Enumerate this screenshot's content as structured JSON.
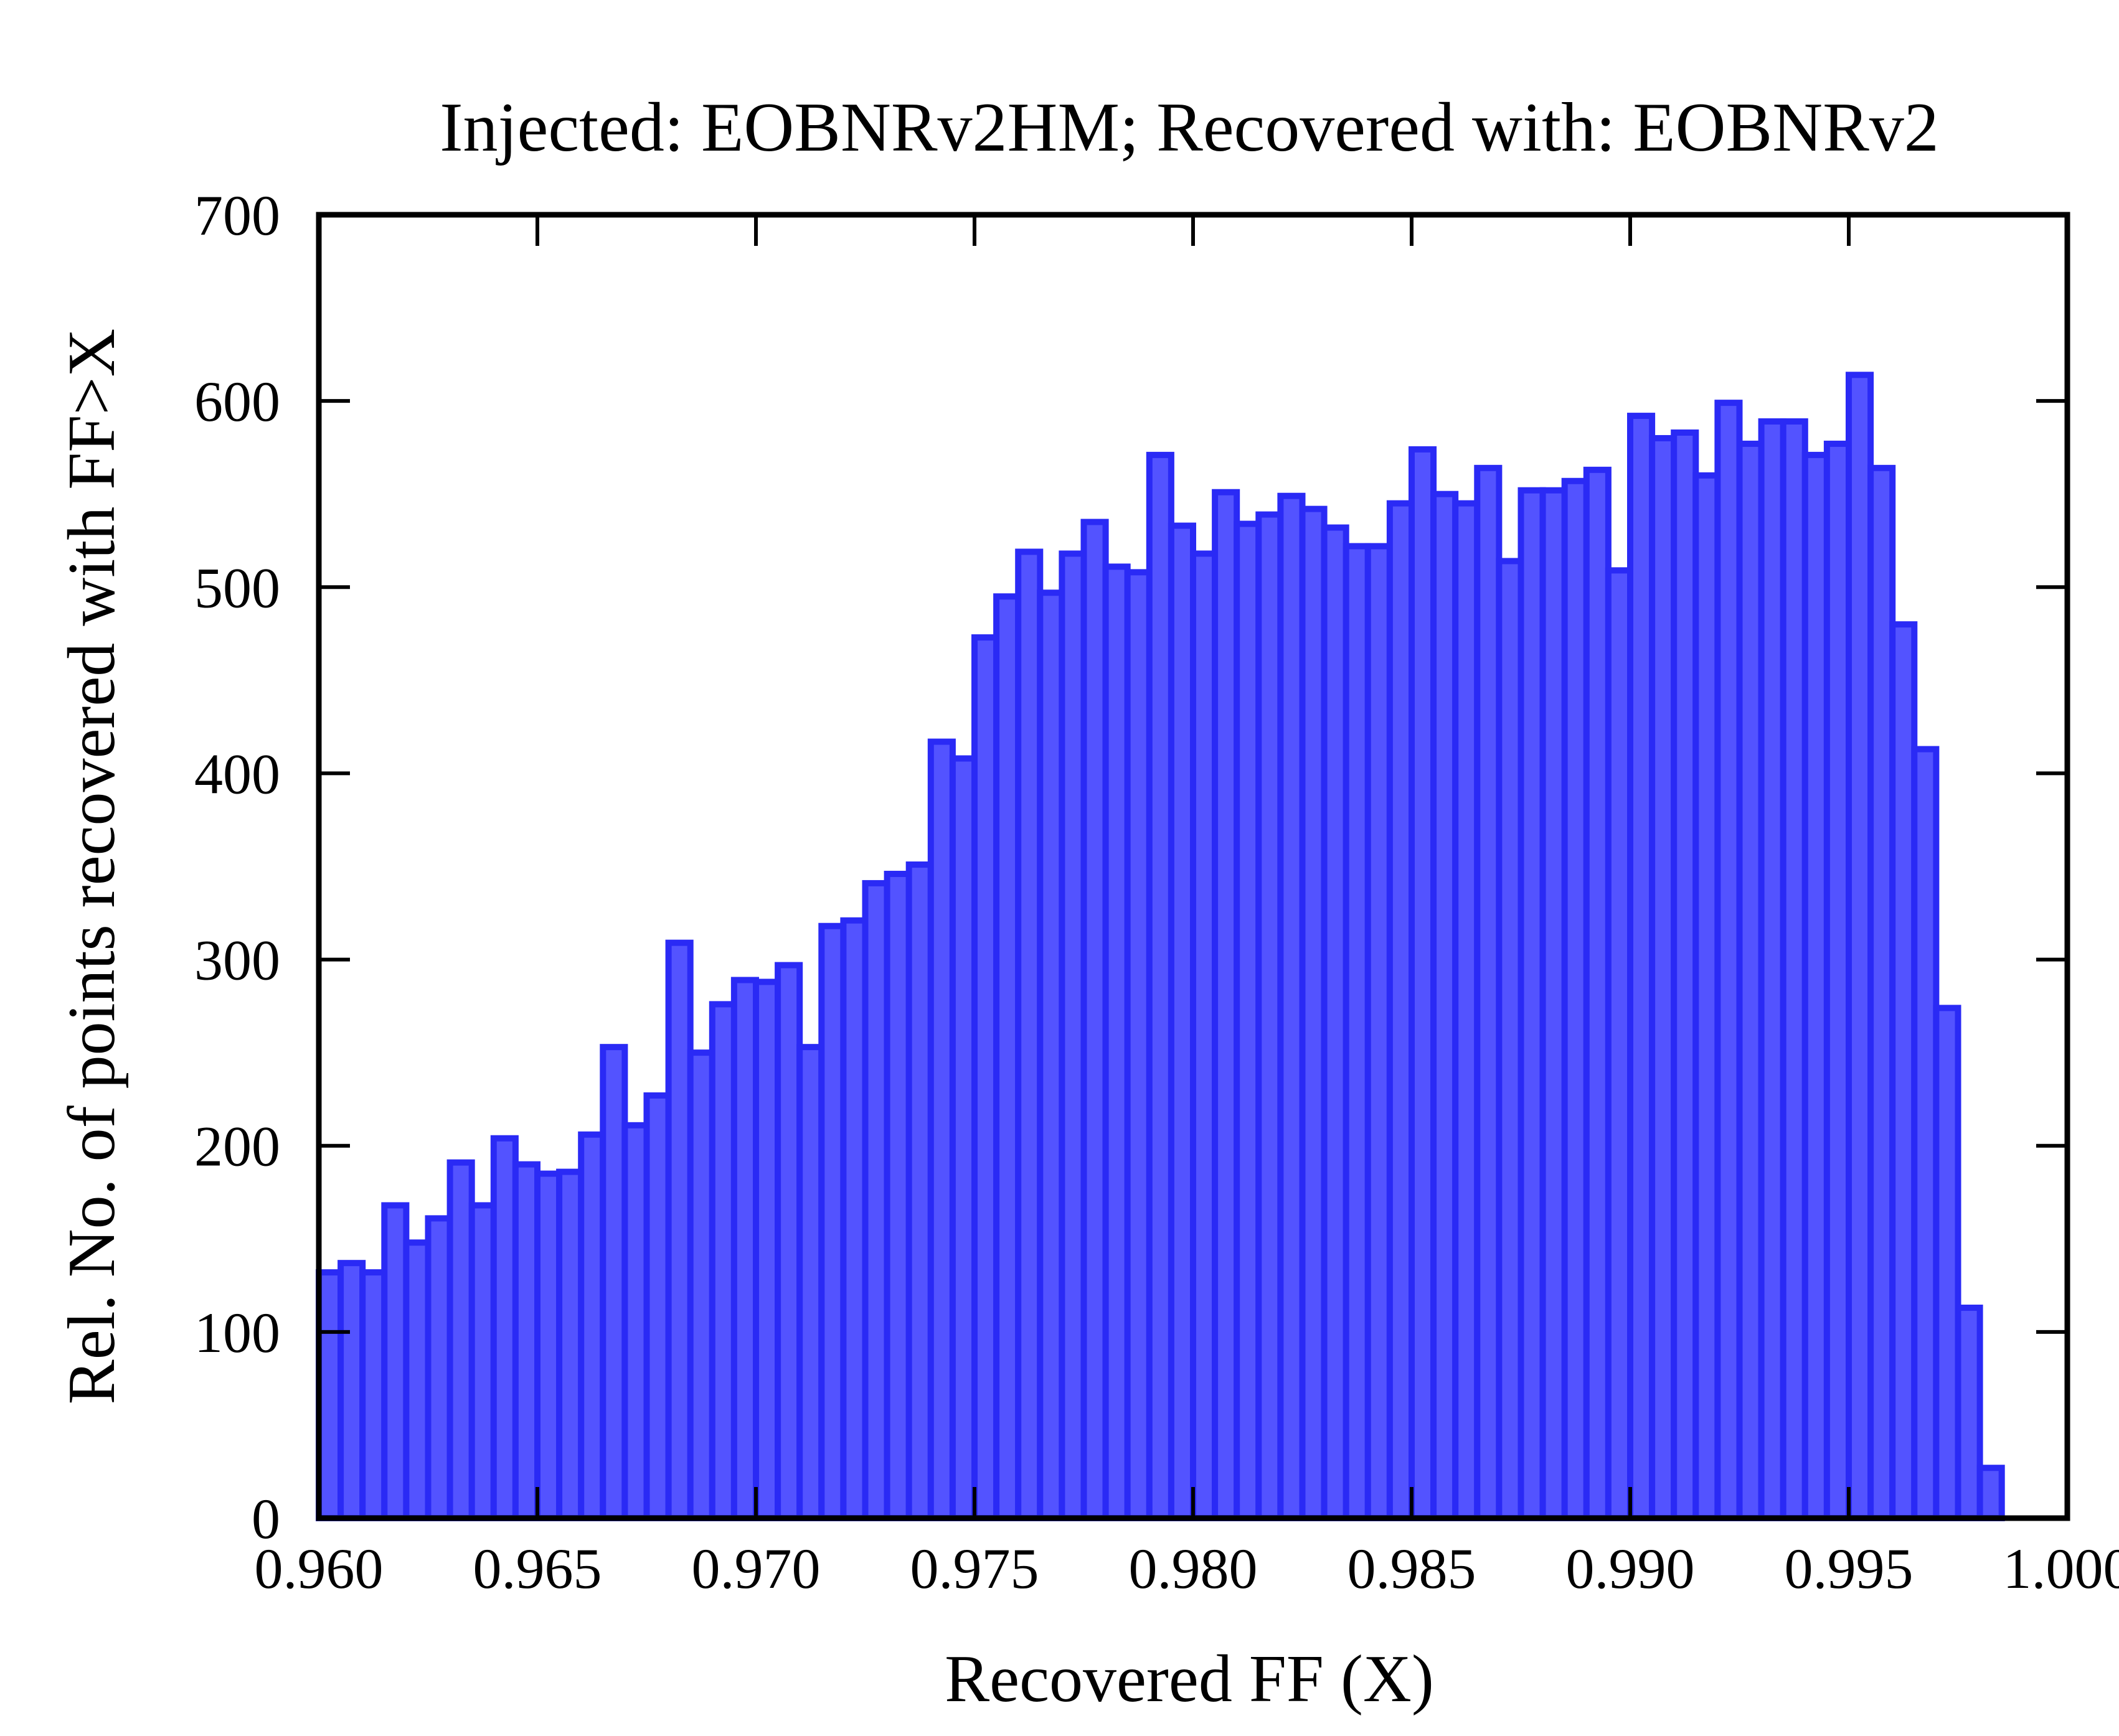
{
  "chart_data": {
    "type": "bar",
    "subtype": "histogram",
    "title": "Injected: EOBNRv2HM; Recovered with: EOBNRv2",
    "xlabel": "Recovered FF (X)",
    "ylabel": "Rel. No. of points recovered with FF>X",
    "xlim": [
      0.96,
      1.0
    ],
    "ylim": [
      0,
      700
    ],
    "xticks": [
      "0.960",
      "0.965",
      "0.970",
      "0.975",
      "0.980",
      "0.985",
      "0.990",
      "0.995",
      "1.000"
    ],
    "yticks": [
      "0",
      "100",
      "200",
      "300",
      "400",
      "500",
      "600",
      "700"
    ],
    "grid": false,
    "bin_width": 0.0005,
    "bin_edges_start": 0.96,
    "values": [
      132,
      137,
      132,
      168,
      148,
      161,
      191,
      168,
      204,
      190,
      185,
      186,
      206,
      253,
      211,
      227,
      309,
      250,
      276,
      289,
      288,
      297,
      253,
      318,
      321,
      341,
      346,
      351,
      417,
      408,
      473,
      495,
      519,
      497,
      518,
      535,
      511,
      508,
      571,
      533,
      518,
      551,
      534,
      539,
      549,
      542,
      532,
      522,
      522,
      545,
      574,
      550,
      545,
      564,
      514,
      552,
      552,
      557,
      563,
      509,
      592,
      580,
      583,
      560,
      599,
      577,
      589,
      589,
      571,
      577,
      614,
      564,
      480,
      413,
      274,
      113,
      27
    ],
    "bar_color": "#5353ff",
    "edge_color": "#2a2af5"
  }
}
